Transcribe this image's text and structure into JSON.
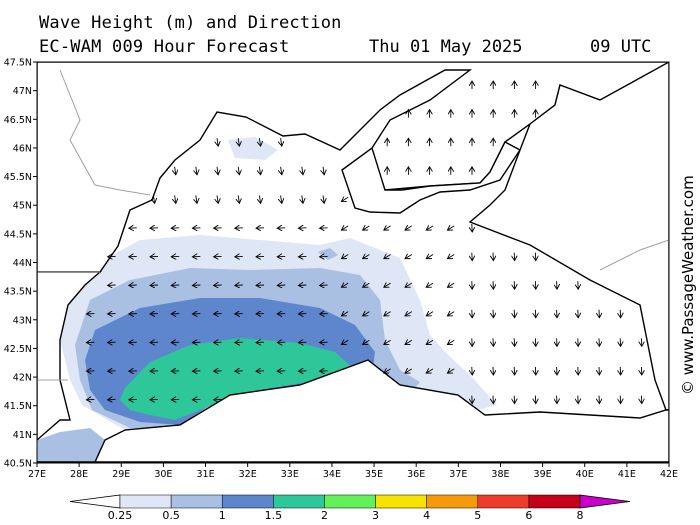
{
  "title": {
    "line1": "Wave Height (m) and Direction",
    "line2": "EC-WAM 009 Hour Forecast",
    "date": "Thu 01 May 2025",
    "time": "09 UTC"
  },
  "credit": "© www.PassageWeather.com",
  "axes": {
    "lat_labels": [
      "47.5N",
      "47N",
      "46.5N",
      "46N",
      "45.5N",
      "45N",
      "44.5N",
      "44N",
      "43.5N",
      "43N",
      "42.5N",
      "42N",
      "41.5N",
      "41N",
      "40.5N"
    ],
    "lon_labels": [
      "27E",
      "28E",
      "29E",
      "30E",
      "31E",
      "32E",
      "33E",
      "34E",
      "35E",
      "36E",
      "37E",
      "38E",
      "39E",
      "40E",
      "41E",
      "42E"
    ],
    "lat_range": [
      40.5,
      47.5
    ],
    "lon_range": [
      27,
      42
    ]
  },
  "colorbar": {
    "labels": [
      "0.25",
      "0.5",
      "1",
      "1.5",
      "2",
      "3",
      "4",
      "5",
      "6",
      "8"
    ],
    "colors": [
      "#ffffff",
      "#dfe7f6",
      "#a9c0e3",
      "#5d86cc",
      "#2ec79a",
      "#64f05a",
      "#f6e400",
      "#f59a0a",
      "#ef3b2c",
      "#c4001a",
      "#c800c8"
    ]
  },
  "legend_wave_colors": {
    "land": "#ffffff",
    "coast": "#000000",
    "borders": "#a0a0a0"
  }
}
